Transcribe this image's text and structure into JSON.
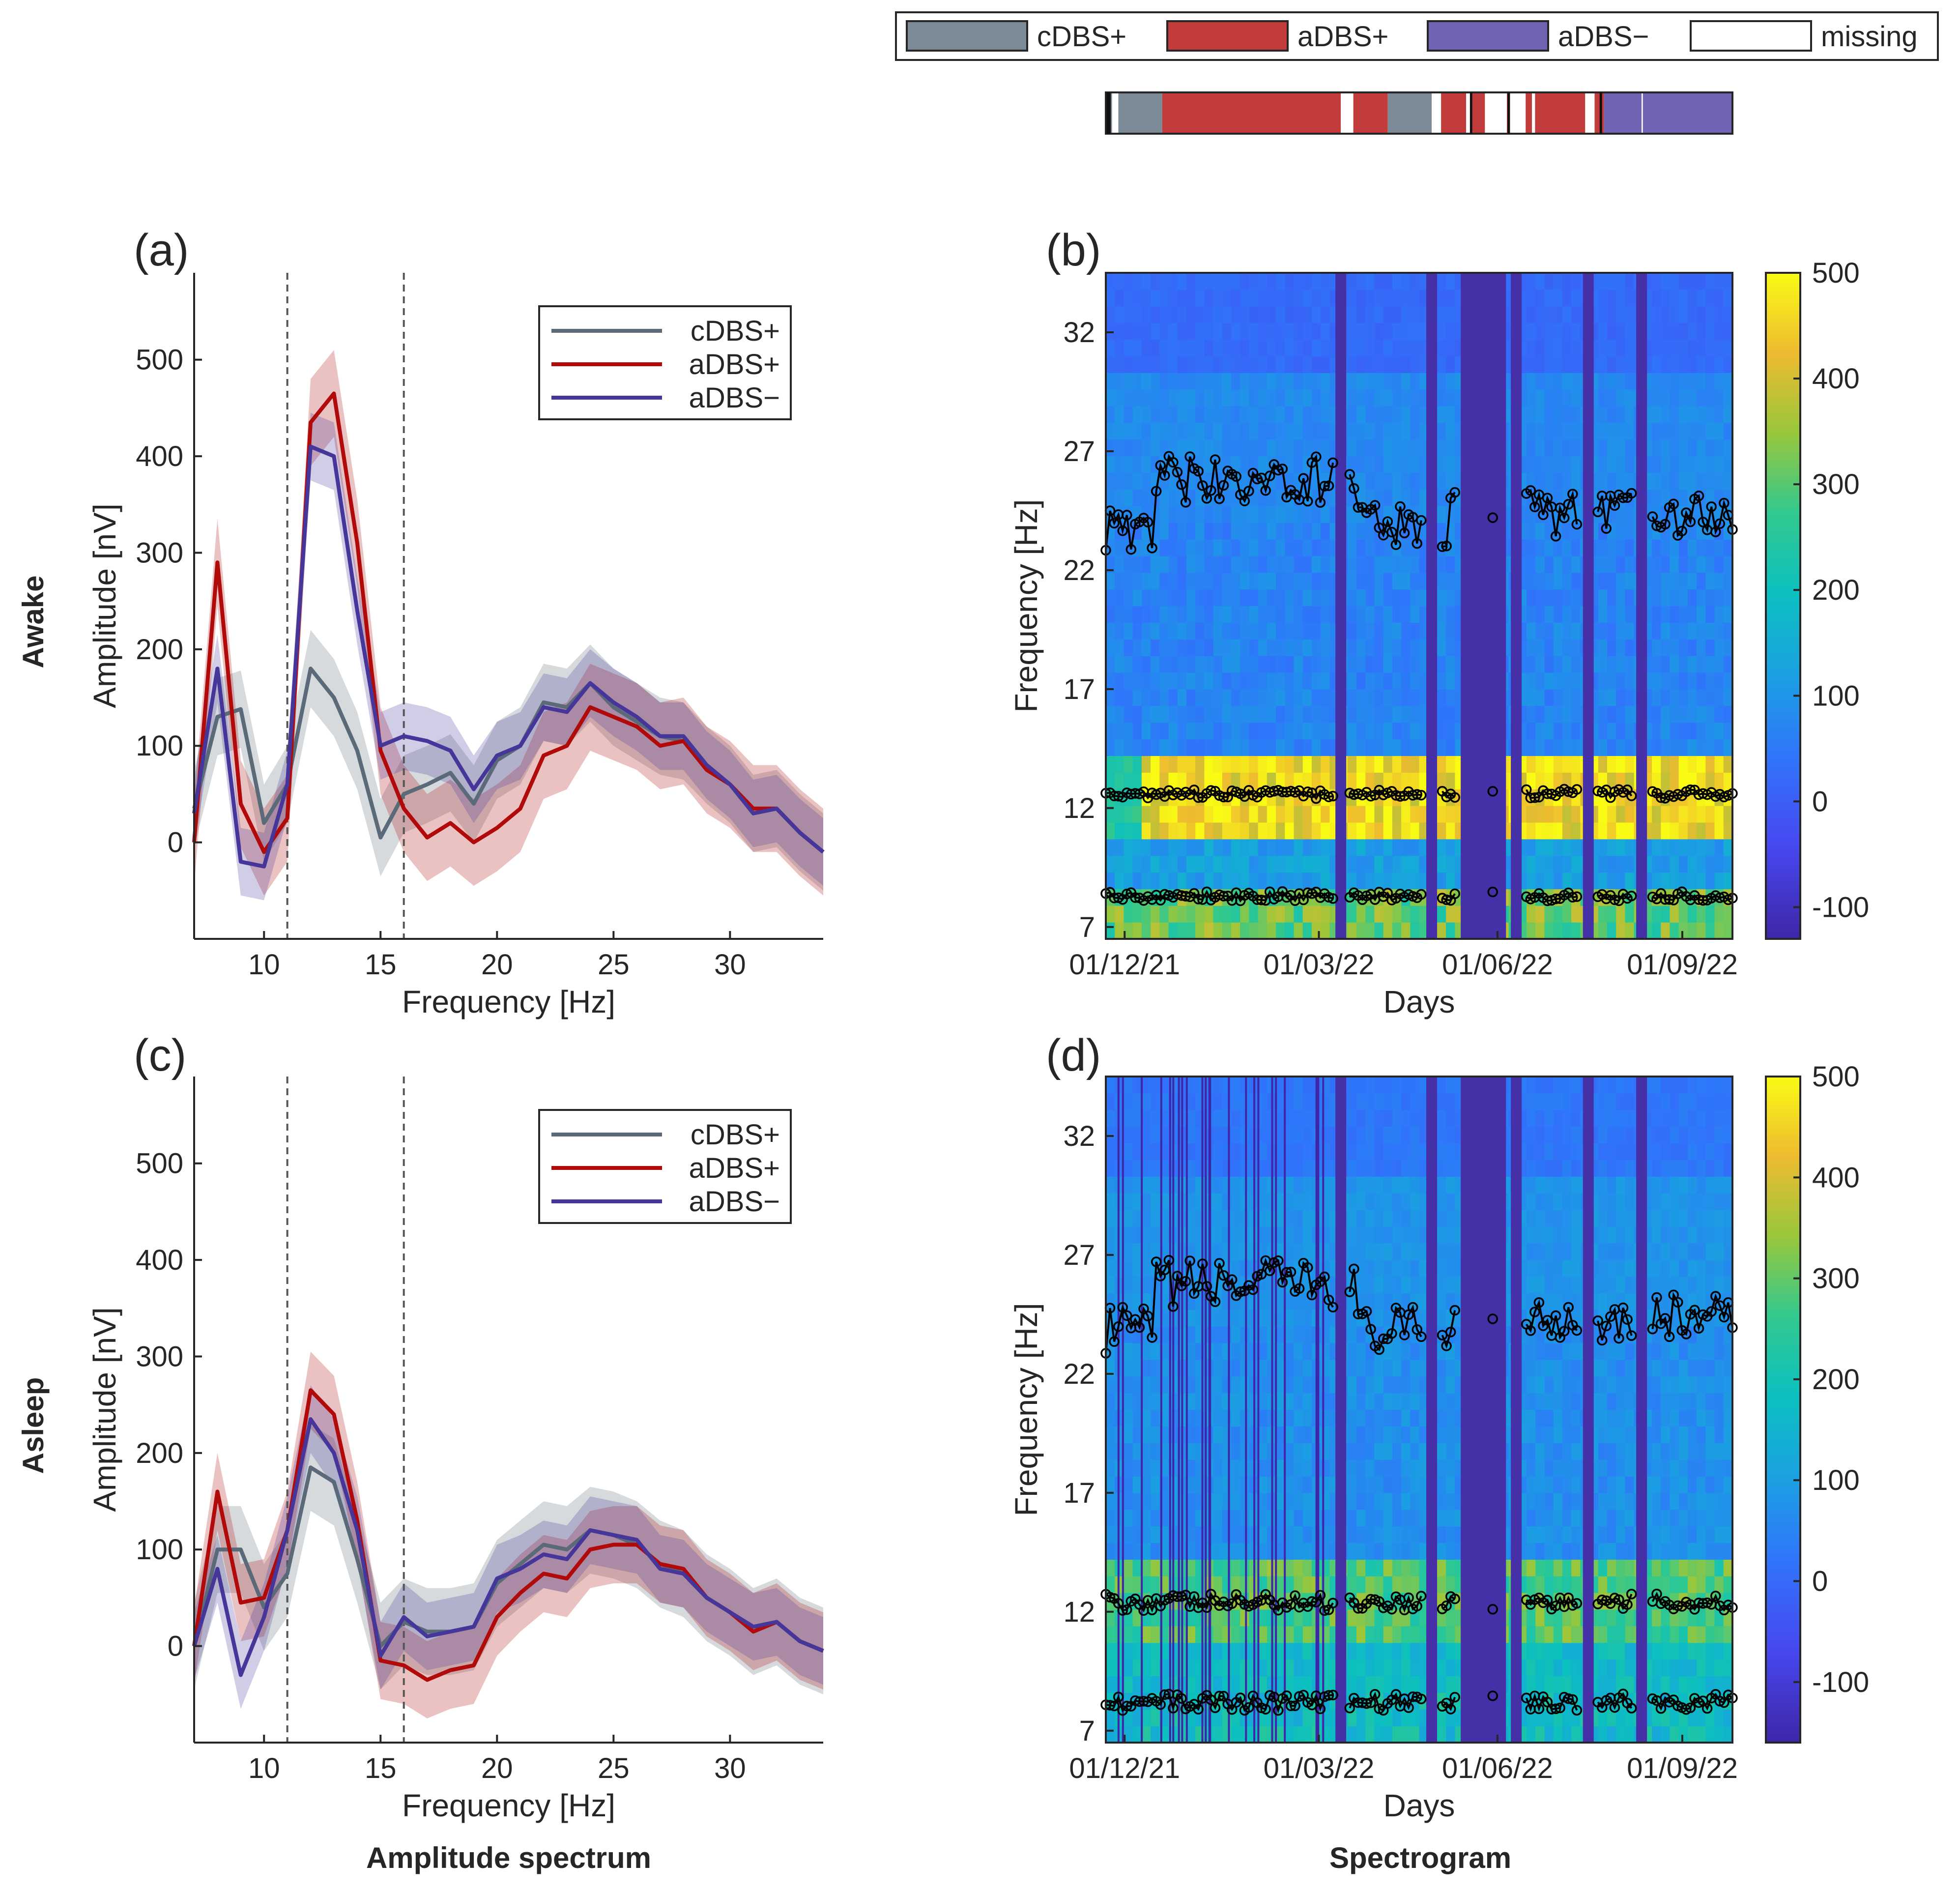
{
  "colors": {
    "cDBS+": "#5a6a78",
    "aDBS+": "#b00a0a",
    "aDBS-": "#46369a",
    "cDBS+_patch": "#7c8997",
    "aDBS+_patch": "#c33c3c",
    "aDBS-_patch": "#6f63b4"
  },
  "top_legend": {
    "entries": [
      {
        "key": "cDBS+",
        "label": "cDBS+"
      },
      {
        "key": "aDBS+",
        "label": "aDBS+"
      },
      {
        "key": "aDBS-",
        "label": "aDBS−"
      },
      {
        "key": "missing",
        "label": "missing"
      }
    ]
  },
  "condition_bar": {
    "segments": [
      [
        "cDBS+",
        0.0,
        0.01
      ],
      [
        "missing",
        0.01,
        0.02
      ],
      [
        "cDBS+",
        0.02,
        0.09
      ],
      [
        "aDBS+",
        0.09,
        0.375
      ],
      [
        "missing",
        0.375,
        0.395
      ],
      [
        "aDBS+",
        0.395,
        0.45
      ],
      [
        "cDBS+",
        0.45,
        0.52
      ],
      [
        "missing",
        0.52,
        0.535
      ],
      [
        "aDBS+",
        0.535,
        0.575
      ],
      [
        "missing",
        0.575,
        0.585
      ],
      [
        "aDBS+",
        0.585,
        0.605
      ],
      [
        "missing",
        0.605,
        0.64
      ],
      [
        "aDBS+",
        0.64,
        0.645
      ],
      [
        "missing",
        0.645,
        0.67
      ],
      [
        "aDBS+",
        0.67,
        0.68
      ],
      [
        "missing",
        0.68,
        0.685
      ],
      [
        "aDBS+",
        0.685,
        0.765
      ],
      [
        "missing",
        0.765,
        0.78
      ],
      [
        "aDBS+",
        0.78,
        0.795
      ],
      [
        "aDBS-",
        0.795,
        0.855
      ],
      [
        "missing",
        0.855,
        0.857
      ],
      [
        "aDBS-",
        0.857,
        1.0
      ]
    ]
  },
  "rows": {
    "awake": "Awake",
    "asleep": "Asleep"
  },
  "bottom_labels": {
    "spectrum": "Amplitude spectrum",
    "spectrogram": "Spectrogram"
  },
  "panel_labels": {
    "a": "(a)",
    "b": "(b)",
    "c": "(c)",
    "d": "(d)"
  },
  "spectrum_axes": {
    "xlabel": "Frequency [Hz]",
    "ylabel": "Amplitude [nV]",
    "xlim": [
      7,
      34
    ],
    "ylim": [
      -100,
      590
    ],
    "xticks": [
      10,
      15,
      20,
      25,
      30
    ],
    "yticks": [
      0,
      100,
      200,
      300,
      400,
      500
    ],
    "vlines": [
      11,
      16
    ],
    "legend": [
      "cDBS+",
      "aDBS+",
      "aDBS−"
    ]
  },
  "spectrogram_axes": {
    "xlabel": "Days",
    "ylabel": "Frequency [Hz]",
    "xtick_labels": [
      "01/12/21",
      "01/03/22",
      "01/06/22",
      "01/09/22"
    ],
    "yticks": [
      7,
      12,
      17,
      22,
      27,
      32
    ],
    "ylim": [
      6.5,
      34.5
    ],
    "colorbar_ticks": [
      -100,
      0,
      100,
      200,
      300,
      400,
      500
    ],
    "colorbar_range": [
      -130,
      500
    ],
    "colormap": "parula"
  },
  "chart_data": [
    {
      "panel": "(a)",
      "type": "line",
      "row": "Awake",
      "xlabel": "Frequency [Hz]",
      "ylabel": "Amplitude [nV]",
      "x": [
        7,
        8,
        9,
        10,
        11,
        12,
        13,
        14,
        15,
        16,
        17,
        18,
        19,
        20,
        21,
        22,
        23,
        24,
        25,
        26,
        27,
        28,
        29,
        30,
        31,
        32,
        33,
        34
      ],
      "series": [
        {
          "name": "cDBS+",
          "values": [
            35,
            130,
            138,
            20,
            60,
            180,
            150,
            95,
            5,
            50,
            60,
            72,
            40,
            85,
            100,
            145,
            140,
            165,
            140,
            125,
            110,
            105,
            80,
            60,
            30,
            35,
            10,
            -10
          ],
          "band": 40
        },
        {
          "name": "aDBS+",
          "values": [
            0,
            290,
            40,
            -10,
            25,
            435,
            465,
            310,
            95,
            35,
            5,
            20,
            0,
            15,
            35,
            90,
            100,
            140,
            130,
            120,
            100,
            105,
            75,
            60,
            35,
            35,
            10,
            -10
          ],
          "band": 45
        },
        {
          "name": "aDBS−",
          "values": [
            30,
            180,
            -20,
            -25,
            60,
            410,
            400,
            240,
            100,
            110,
            105,
            95,
            55,
            90,
            100,
            140,
            135,
            165,
            145,
            130,
            110,
            110,
            80,
            60,
            30,
            35,
            10,
            -10
          ],
          "band": 35
        }
      ]
    },
    {
      "panel": "(c)",
      "type": "line",
      "row": "Asleep",
      "xlabel": "Frequency [Hz]",
      "ylabel": "Amplitude [nV]",
      "x": [
        7,
        8,
        9,
        10,
        11,
        12,
        13,
        14,
        15,
        16,
        17,
        18,
        19,
        20,
        21,
        22,
        23,
        24,
        25,
        26,
        27,
        28,
        29,
        30,
        31,
        32,
        33,
        34
      ],
      "series": [
        {
          "name": "cDBS+",
          "values": [
            0,
            100,
            100,
            40,
            75,
            185,
            170,
            90,
            0,
            25,
            15,
            15,
            20,
            65,
            85,
            105,
            100,
            120,
            115,
            105,
            85,
            75,
            50,
            35,
            15,
            25,
            5,
            -5
          ],
          "band": 45
        },
        {
          "name": "aDBS+",
          "values": [
            0,
            160,
            45,
            50,
            120,
            265,
            240,
            130,
            -15,
            -20,
            -35,
            -25,
            -20,
            30,
            55,
            75,
            70,
            100,
            105,
            105,
            85,
            80,
            50,
            35,
            15,
            25,
            5,
            -5
          ],
          "band": 40
        },
        {
          "name": "aDBS−",
          "values": [
            0,
            80,
            -30,
            30,
            120,
            235,
            200,
            120,
            -10,
            30,
            10,
            15,
            20,
            70,
            80,
            95,
            90,
            120,
            115,
            110,
            80,
            75,
            50,
            35,
            20,
            25,
            5,
            -5
          ],
          "band": 35
        }
      ]
    },
    {
      "panel": "(b)",
      "type": "heatmap",
      "row": "Awake",
      "xlabel": "Days",
      "ylabel": "Frequency [Hz]",
      "x_start": "01/12/21",
      "x_end": "01/11/22",
      "peak_tracks_hz": [
        25,
        12.6,
        8.3
      ],
      "missing_day_bands": [
        0.375,
        0.52,
        0.575,
        0.6,
        0.63,
        0.655,
        0.77,
        0.855
      ],
      "colorbar_range": [
        -130,
        500
      ]
    },
    {
      "panel": "(d)",
      "type": "heatmap",
      "row": "Asleep",
      "xlabel": "Days",
      "ylabel": "Frequency [Hz]",
      "x_start": "01/12/21",
      "x_end": "01/11/22",
      "peak_tracks_hz": [
        25,
        12.4,
        8.2
      ],
      "missing_day_bands": [
        0.375,
        0.52,
        0.575,
        0.6,
        0.63,
        0.655,
        0.77,
        0.855
      ],
      "colorbar_range": [
        -160,
        500
      ]
    }
  ]
}
